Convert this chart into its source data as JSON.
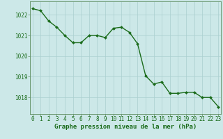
{
  "x": [
    0,
    1,
    2,
    3,
    4,
    5,
    6,
    7,
    8,
    9,
    10,
    11,
    12,
    13,
    14,
    15,
    16,
    17,
    18,
    19,
    20,
    21,
    22,
    23
  ],
  "y": [
    1022.3,
    1022.2,
    1021.7,
    1021.4,
    1021.0,
    1020.65,
    1020.65,
    1021.0,
    1021.0,
    1020.9,
    1021.35,
    1021.4,
    1021.15,
    1020.6,
    1019.05,
    1018.65,
    1018.75,
    1018.2,
    1018.2,
    1018.25,
    1018.25,
    1018.0,
    1018.0,
    1017.55
  ],
  "line_color": "#1a6b1a",
  "marker": "D",
  "marker_size": 2.0,
  "line_width": 1.0,
  "bg_color": "#cce8e8",
  "grid_color": "#aacfcf",
  "xlabel": "Graphe pression niveau de la mer (hPa)",
  "xlabel_color": "#1a6b1a",
  "xlabel_fontsize": 6.5,
  "yticks": [
    1018,
    1019,
    1020,
    1021,
    1022
  ],
  "xticks": [
    0,
    1,
    2,
    3,
    4,
    5,
    6,
    7,
    8,
    9,
    10,
    11,
    12,
    13,
    14,
    15,
    16,
    17,
    18,
    19,
    20,
    21,
    22,
    23
  ],
  "ylim": [
    1017.2,
    1022.65
  ],
  "xlim": [
    -0.3,
    23.3
  ],
  "tick_color": "#1a6b1a",
  "tick_fontsize": 5.5,
  "spine_color": "#5a8a5a"
}
